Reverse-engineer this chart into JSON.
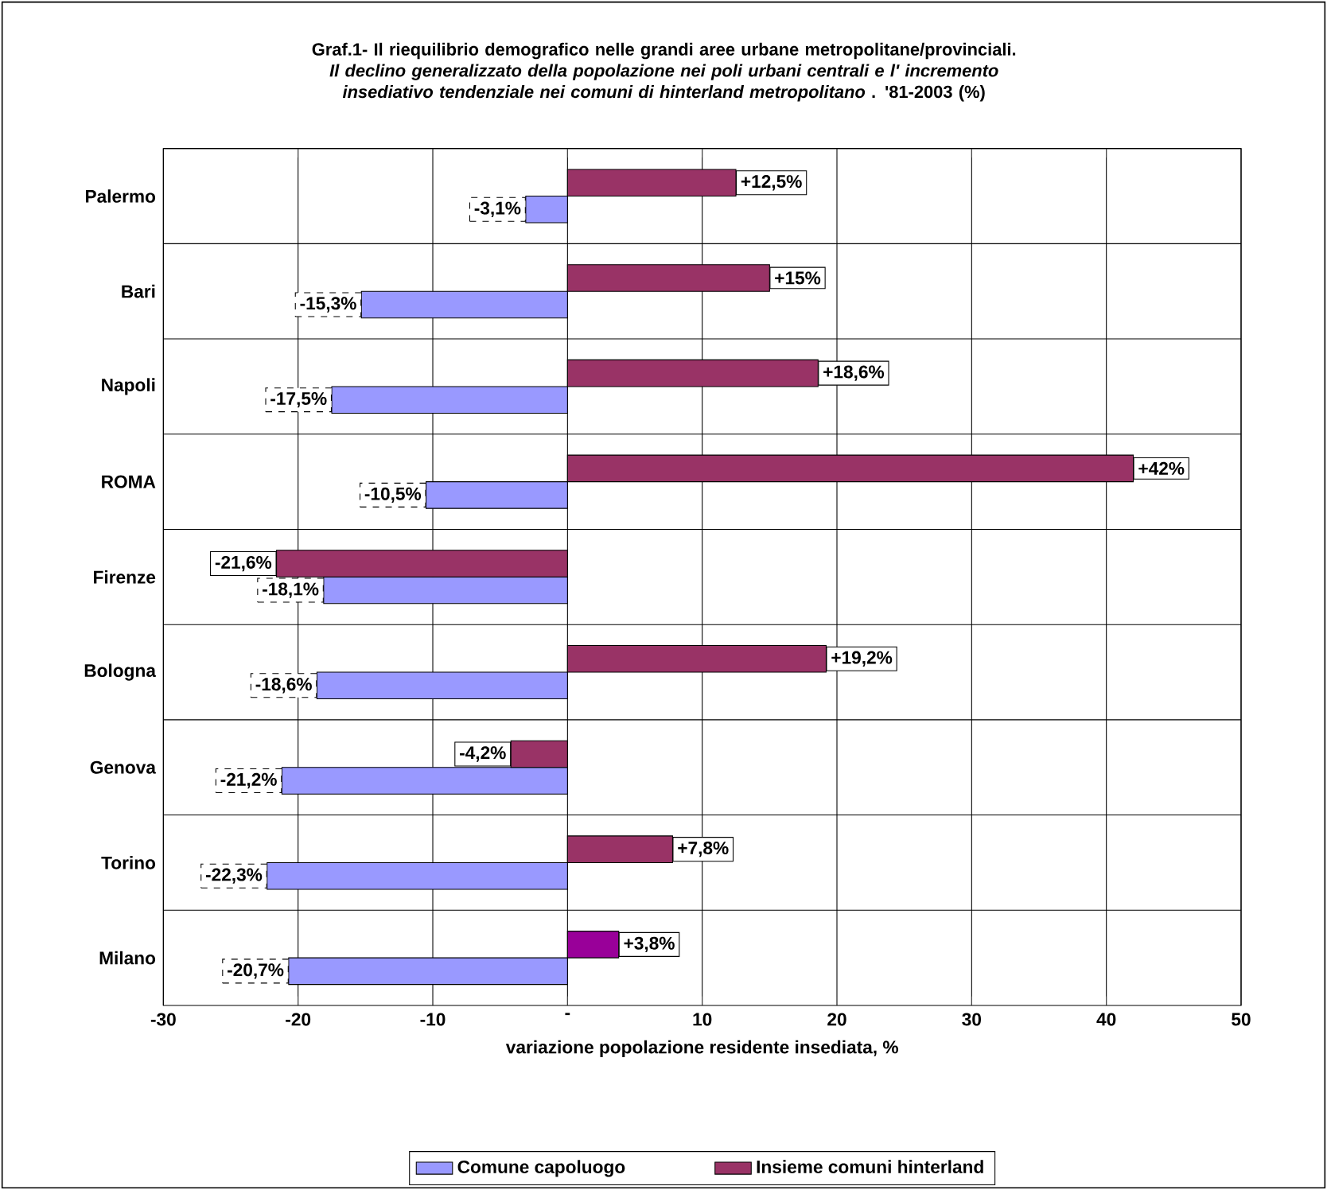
{
  "chart_data": {
    "type": "bar",
    "orientation": "horizontal",
    "title": "Graf.1- Il riequilibrio demografico nelle grandi aree urbane metropolitane/provinciali. *Il declino generalizzato della popolazione nei poli urbani centrali e l' incremento insediativo tendenziale nei comuni di hinterland metropolitano* . '81-2003 (%)",
    "xlabel": "variazione popolazione residente insediata, %",
    "categories": [
      "Palermo",
      "Bari",
      "Napoli",
      "ROMA",
      "Firenze",
      "Bologna",
      "Genova",
      "Torino",
      "Milano"
    ],
    "series": [
      {
        "name": "Comune capoluogo",
        "color": "#9999ff",
        "values": [
          -3.1,
          -15.3,
          -17.5,
          -10.5,
          -18.1,
          -18.6,
          -21.2,
          -22.3,
          -20.7
        ],
        "value_labels": [
          "-3,1%",
          "-15,3%",
          "-17,5%",
          "-10,5%",
          "-18,1%",
          "-18,6%",
          "-21,2%",
          "-22,3%",
          "-20,7%"
        ]
      },
      {
        "name": "Insieme comuni hinterland",
        "color": "#993366",
        "colors": [
          "#993366",
          "#993366",
          "#993366",
          "#993366",
          "#993366",
          "#993366",
          "#993366",
          "#993366",
          "#990099"
        ],
        "values": [
          12.5,
          15,
          18.6,
          42,
          -21.6,
          19.2,
          -4.2,
          7.8,
          3.8
        ],
        "value_labels": [
          "+12,5%",
          "+15%",
          "+18,6%",
          "+42%",
          "-21,6%",
          "+19,2%",
          "-4,2%",
          "+7,8%",
          "+3,8%"
        ]
      }
    ],
    "xlim": [
      -30,
      50
    ],
    "xticks": [
      -30,
      -20,
      -10,
      {
        "value": 0,
        "label": "-"
      },
      10,
      20,
      30,
      40,
      50
    ],
    "grid": true,
    "legend": "bottom"
  }
}
